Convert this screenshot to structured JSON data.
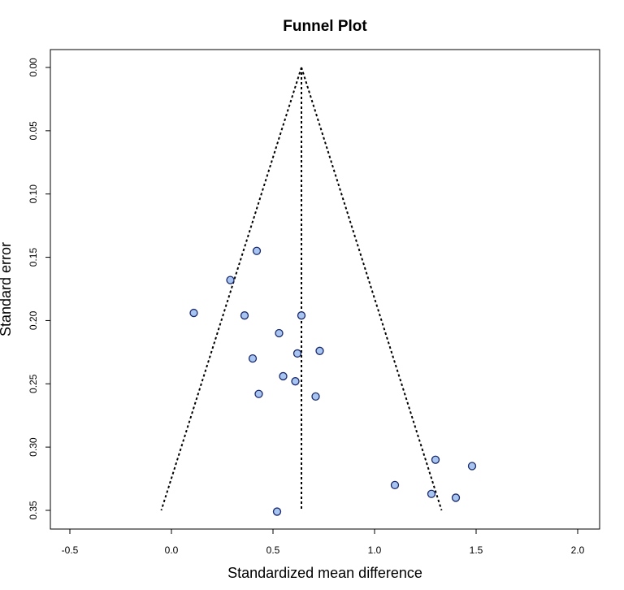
{
  "chart_data": {
    "type": "scatter",
    "title": "Funnel Plot",
    "xlabel": "Standardized mean difference",
    "ylabel": "Standard error",
    "xlim": [
      -0.6,
      2.1
    ],
    "ylim": [
      0.0,
      0.365
    ],
    "y_reversed": true,
    "x_ticks": [
      -0.5,
      0.0,
      0.5,
      1.0,
      1.5,
      2.0
    ],
    "x_tick_labels": [
      "-0.5",
      "0.0",
      "0.5",
      "1.0",
      "1.5",
      "2.0"
    ],
    "y_ticks": [
      0.0,
      0.05,
      0.1,
      0.15,
      0.2,
      0.25,
      0.3,
      0.35
    ],
    "y_tick_labels": [
      "0.00",
      "0.05",
      "0.10",
      "0.15",
      "0.20",
      "0.25",
      "0.30",
      "0.35"
    ],
    "pooled_estimate": 0.64,
    "funnel": {
      "apex": [
        0.64,
        0.0
      ],
      "left_base": [
        -0.05,
        0.35
      ],
      "right_base": [
        1.33,
        0.35
      ],
      "center_base": [
        0.64,
        0.35
      ],
      "style": "dotted"
    },
    "points": [
      {
        "x": 0.42,
        "y": 0.145
      },
      {
        "x": 0.29,
        "y": 0.168
      },
      {
        "x": 0.11,
        "y": 0.194
      },
      {
        "x": 0.36,
        "y": 0.196
      },
      {
        "x": 0.64,
        "y": 0.196
      },
      {
        "x": 0.53,
        "y": 0.21
      },
      {
        "x": 0.73,
        "y": 0.224
      },
      {
        "x": 0.62,
        "y": 0.226
      },
      {
        "x": 0.4,
        "y": 0.23
      },
      {
        "x": 0.55,
        "y": 0.244
      },
      {
        "x": 0.61,
        "y": 0.248
      },
      {
        "x": 0.43,
        "y": 0.258
      },
      {
        "x": 0.71,
        "y": 0.26
      },
      {
        "x": 1.3,
        "y": 0.31
      },
      {
        "x": 1.48,
        "y": 0.315
      },
      {
        "x": 1.1,
        "y": 0.33
      },
      {
        "x": 1.28,
        "y": 0.337
      },
      {
        "x": 1.4,
        "y": 0.34
      },
      {
        "x": 0.52,
        "y": 0.351
      }
    ],
    "point_fill": "#a8c4f0",
    "point_stroke": "#1a2a6c",
    "grid": false,
    "legend": "none"
  }
}
